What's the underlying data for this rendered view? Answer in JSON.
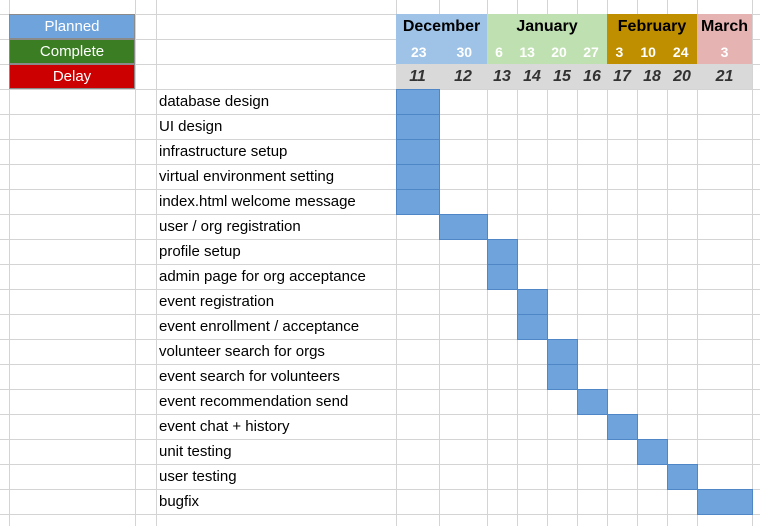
{
  "legend": {
    "planned": "Planned",
    "complete": "Complete",
    "delay": "Delay",
    "colors": {
      "planned": "#6fa3dc",
      "complete": "#3a7d22",
      "delay": "#cc0000"
    }
  },
  "months": [
    {
      "name": "December",
      "days": [
        "23",
        "30"
      ],
      "color": "#9fc3e7",
      "dayColor": "#9fc3e7"
    },
    {
      "name": "January",
      "days": [
        "6",
        "13",
        "20",
        "27"
      ],
      "color": "#bfe0b0",
      "dayColor": "#bfe0b0"
    },
    {
      "name": "February",
      "days": [
        "3",
        "10",
        "24"
      ],
      "color": "#bf8f00",
      "dayColor": "#bf8f00"
    },
    {
      "name": "March",
      "days": [
        "3"
      ],
      "color": "#e6b3b3",
      "dayColor": "#e6b3b3"
    }
  ],
  "weeks": [
    "11",
    "12",
    "13",
    "14",
    "15",
    "16",
    "17",
    "18",
    "20",
    "21"
  ],
  "tasks": [
    {
      "name": "database design",
      "week": 0
    },
    {
      "name": "UI design",
      "week": 0
    },
    {
      "name": "infrastructure setup",
      "week": 0
    },
    {
      "name": "virtual environment setting",
      "week": 0
    },
    {
      "name": "index.html welcome message",
      "week": 0
    },
    {
      "name": "user / org registration",
      "week": 1
    },
    {
      "name": "profile setup",
      "week": 2
    },
    {
      "name": "admin page for org acceptance",
      "week": 2
    },
    {
      "name": "event registration",
      "week": 3
    },
    {
      "name": "event enrollment / acceptance",
      "week": 3
    },
    {
      "name": "volunteer search for orgs",
      "week": 4
    },
    {
      "name": "event search for volunteers",
      "week": 4
    },
    {
      "name": "event recommendation send",
      "week": 5
    },
    {
      "name": "event chat + history",
      "week": 6
    },
    {
      "name": "unit testing",
      "week": 7
    },
    {
      "name": "user testing",
      "week": 8
    },
    {
      "name": "bugfix",
      "week": 9
    }
  ]
}
